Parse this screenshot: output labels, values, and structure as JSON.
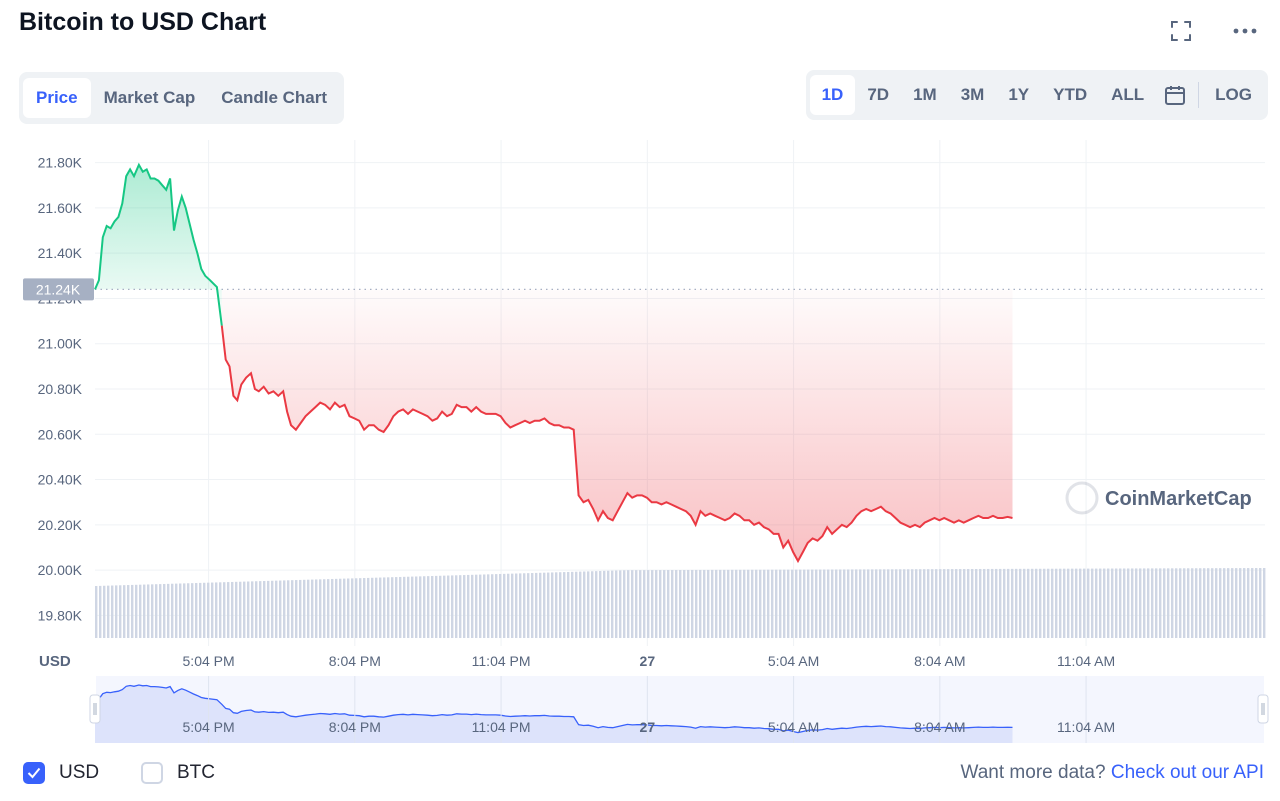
{
  "header": {
    "title": "Bitcoin to USD Chart"
  },
  "icons": {
    "fullscreen": "fullscreen-icon",
    "more": "more-icon",
    "calendar": "calendar-icon",
    "watermark": "coinmarketcap-logo-icon"
  },
  "tabs": [
    {
      "label": "Price",
      "active": true
    },
    {
      "label": "Market Cap",
      "active": false
    },
    {
      "label": "Candle Chart",
      "active": false
    }
  ],
  "ranges": {
    "items": [
      {
        "label": "1D",
        "active": true
      },
      {
        "label": "7D",
        "active": false
      },
      {
        "label": "1M",
        "active": false
      },
      {
        "label": "3M",
        "active": false
      },
      {
        "label": "1Y",
        "active": false
      },
      {
        "label": "YTD",
        "active": false
      },
      {
        "label": "ALL",
        "active": false
      }
    ],
    "log_label": "LOG"
  },
  "colors": {
    "up": "#16c784",
    "down": "#ea3943",
    "accent": "#3861fb",
    "volume": "#cfd6e4",
    "navigator": "#dde3fb"
  },
  "chart_data": {
    "type": "line",
    "y_unit": "USD",
    "ylim": [
      19700,
      21900
    ],
    "y_ticks": [
      "21.80K",
      "21.60K",
      "21.40K",
      "21.20K",
      "21.00K",
      "20.80K",
      "20.60K",
      "20.40K",
      "20.20K",
      "20.00K",
      "19.80K"
    ],
    "y_tick_values": [
      21800,
      21600,
      21400,
      21200,
      21000,
      20800,
      20600,
      20400,
      20200,
      20000,
      19800
    ],
    "x_ticks": [
      "5:04 PM",
      "8:04 PM",
      "11:04 PM",
      "27",
      "5:04 AM",
      "8:04 AM",
      "11:04 AM"
    ],
    "x_tick_hours": [
      2.33,
      5.33,
      8.33,
      11.33,
      14.33,
      17.33,
      20.33
    ],
    "x_range_hours": [
      0,
      24
    ],
    "reference_price": 21240,
    "reference_label": "21.24K",
    "watermark": "CoinMarketCap",
    "series": [
      {
        "points": [
          [
            0.0,
            21240
          ],
          [
            0.08,
            21280
          ],
          [
            0.16,
            21470
          ],
          [
            0.24,
            21520
          ],
          [
            0.32,
            21510
          ],
          [
            0.4,
            21540
          ],
          [
            0.48,
            21560
          ],
          [
            0.56,
            21620
          ],
          [
            0.64,
            21740
          ],
          [
            0.72,
            21770
          ],
          [
            0.8,
            21740
          ],
          [
            0.9,
            21790
          ],
          [
            0.98,
            21760
          ],
          [
            1.06,
            21770
          ],
          [
            1.14,
            21730
          ],
          [
            1.22,
            21730
          ],
          [
            1.3,
            21720
          ],
          [
            1.38,
            21700
          ],
          [
            1.46,
            21680
          ],
          [
            1.54,
            21730
          ],
          [
            1.62,
            21500
          ],
          [
            1.7,
            21590
          ],
          [
            1.78,
            21650
          ],
          [
            1.86,
            21600
          ],
          [
            1.94,
            21530
          ],
          [
            2.02,
            21460
          ],
          [
            2.1,
            21400
          ],
          [
            2.18,
            21330
          ],
          [
            2.26,
            21300
          ],
          [
            2.36,
            21280
          ],
          [
            2.5,
            21250
          ],
          [
            2.6,
            21080
          ],
          [
            2.68,
            20930
          ],
          [
            2.76,
            20900
          ],
          [
            2.84,
            20770
          ],
          [
            2.92,
            20750
          ],
          [
            3.0,
            20820
          ],
          [
            3.1,
            20850
          ],
          [
            3.2,
            20870
          ],
          [
            3.28,
            20800
          ],
          [
            3.36,
            20790
          ],
          [
            3.46,
            20810
          ],
          [
            3.56,
            20780
          ],
          [
            3.66,
            20790
          ],
          [
            3.76,
            20770
          ],
          [
            3.86,
            20790
          ],
          [
            3.94,
            20700
          ],
          [
            4.02,
            20640
          ],
          [
            4.12,
            20620
          ],
          [
            4.22,
            20650
          ],
          [
            4.32,
            20680
          ],
          [
            4.42,
            20700
          ],
          [
            4.52,
            20720
          ],
          [
            4.62,
            20740
          ],
          [
            4.72,
            20730
          ],
          [
            4.82,
            20710
          ],
          [
            4.92,
            20740
          ],
          [
            5.02,
            20720
          ],
          [
            5.12,
            20730
          ],
          [
            5.22,
            20680
          ],
          [
            5.32,
            20670
          ],
          [
            5.42,
            20660
          ],
          [
            5.52,
            20620
          ],
          [
            5.62,
            20640
          ],
          [
            5.72,
            20640
          ],
          [
            5.82,
            20620
          ],
          [
            5.92,
            20610
          ],
          [
            6.02,
            20640
          ],
          [
            6.12,
            20680
          ],
          [
            6.22,
            20700
          ],
          [
            6.32,
            20710
          ],
          [
            6.42,
            20690
          ],
          [
            6.52,
            20710
          ],
          [
            6.62,
            20700
          ],
          [
            6.72,
            20690
          ],
          [
            6.82,
            20680
          ],
          [
            6.92,
            20660
          ],
          [
            7.02,
            20670
          ],
          [
            7.12,
            20700
          ],
          [
            7.22,
            20680
          ],
          [
            7.32,
            20690
          ],
          [
            7.42,
            20730
          ],
          [
            7.52,
            20720
          ],
          [
            7.62,
            20720
          ],
          [
            7.72,
            20700
          ],
          [
            7.82,
            20720
          ],
          [
            7.92,
            20700
          ],
          [
            8.02,
            20690
          ],
          [
            8.12,
            20690
          ],
          [
            8.22,
            20690
          ],
          [
            8.32,
            20680
          ],
          [
            8.42,
            20650
          ],
          [
            8.52,
            20630
          ],
          [
            8.62,
            20640
          ],
          [
            8.72,
            20650
          ],
          [
            8.82,
            20660
          ],
          [
            8.92,
            20650
          ],
          [
            9.02,
            20660
          ],
          [
            9.12,
            20660
          ],
          [
            9.22,
            20670
          ],
          [
            9.32,
            20650
          ],
          [
            9.42,
            20640
          ],
          [
            9.52,
            20640
          ],
          [
            9.62,
            20630
          ],
          [
            9.72,
            20630
          ],
          [
            9.82,
            20620
          ],
          [
            9.92,
            20330
          ],
          [
            10.02,
            20300
          ],
          [
            10.12,
            20310
          ],
          [
            10.22,
            20270
          ],
          [
            10.32,
            20220
          ],
          [
            10.42,
            20260
          ],
          [
            10.52,
            20230
          ],
          [
            10.62,
            20220
          ],
          [
            10.72,
            20260
          ],
          [
            10.82,
            20300
          ],
          [
            10.92,
            20340
          ],
          [
            11.02,
            20320
          ],
          [
            11.12,
            20330
          ],
          [
            11.22,
            20330
          ],
          [
            11.32,
            20320
          ],
          [
            11.42,
            20300
          ],
          [
            11.52,
            20300
          ],
          [
            11.62,
            20290
          ],
          [
            11.72,
            20300
          ],
          [
            11.82,
            20290
          ],
          [
            11.92,
            20280
          ],
          [
            12.02,
            20270
          ],
          [
            12.12,
            20260
          ],
          [
            12.22,
            20240
          ],
          [
            12.32,
            20200
          ],
          [
            12.42,
            20260
          ],
          [
            12.52,
            20240
          ],
          [
            12.62,
            20250
          ],
          [
            12.72,
            20240
          ],
          [
            12.82,
            20230
          ],
          [
            12.92,
            20220
          ],
          [
            13.02,
            20230
          ],
          [
            13.12,
            20250
          ],
          [
            13.22,
            20240
          ],
          [
            13.32,
            20220
          ],
          [
            13.42,
            20220
          ],
          [
            13.52,
            20200
          ],
          [
            13.62,
            20210
          ],
          [
            13.72,
            20190
          ],
          [
            13.82,
            20180
          ],
          [
            13.92,
            20160
          ],
          [
            14.02,
            20160
          ],
          [
            14.12,
            20100
          ],
          [
            14.22,
            20130
          ],
          [
            14.32,
            20080
          ],
          [
            14.42,
            20040
          ],
          [
            14.52,
            20080
          ],
          [
            14.62,
            20120
          ],
          [
            14.72,
            20140
          ],
          [
            14.82,
            20130
          ],
          [
            14.92,
            20150
          ],
          [
            15.02,
            20190
          ],
          [
            15.12,
            20160
          ],
          [
            15.22,
            20180
          ],
          [
            15.32,
            20200
          ],
          [
            15.42,
            20190
          ],
          [
            15.52,
            20210
          ],
          [
            15.62,
            20240
          ],
          [
            15.72,
            20260
          ],
          [
            15.82,
            20270
          ],
          [
            15.92,
            20260
          ],
          [
            16.02,
            20270
          ],
          [
            16.12,
            20280
          ],
          [
            16.22,
            20260
          ],
          [
            16.32,
            20250
          ],
          [
            16.42,
            20230
          ],
          [
            16.52,
            20210
          ],
          [
            16.62,
            20200
          ],
          [
            16.72,
            20190
          ],
          [
            16.82,
            20200
          ],
          [
            16.92,
            20190
          ],
          [
            17.02,
            20210
          ],
          [
            17.12,
            20220
          ],
          [
            17.22,
            20230
          ],
          [
            17.32,
            20220
          ],
          [
            17.42,
            20230
          ],
          [
            17.52,
            20220
          ],
          [
            17.62,
            20210
          ],
          [
            17.72,
            20220
          ],
          [
            17.82,
            20210
          ],
          [
            17.92,
            20220
          ],
          [
            18.02,
            20230
          ],
          [
            18.12,
            20240
          ],
          [
            18.22,
            20230
          ],
          [
            18.32,
            20230
          ],
          [
            18.42,
            20240
          ],
          [
            18.52,
            20230
          ],
          [
            18.62,
            20230
          ],
          [
            18.72,
            20235
          ],
          [
            18.82,
            20230
          ]
        ]
      }
    ]
  },
  "footer": {
    "usd_label": "USD",
    "usd_checked": true,
    "btc_label": "BTC",
    "btc_checked": false,
    "api_text": "Want more data?",
    "api_link": "Check out our API"
  }
}
